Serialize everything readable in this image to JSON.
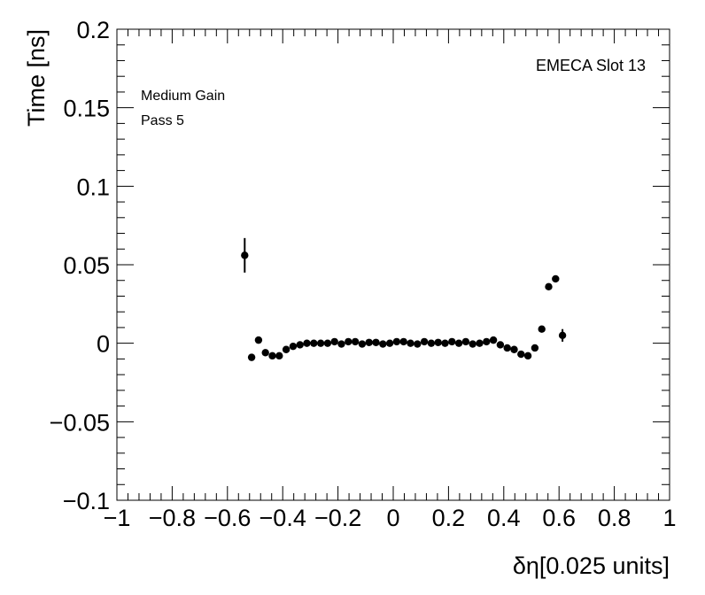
{
  "chart_data": {
    "type": "scatter",
    "xlabel": "δη[0.025 units]",
    "ylabel": "Time [ns]",
    "xlim": [
      -1,
      1
    ],
    "ylim": [
      -0.1,
      0.2
    ],
    "x_ticks": [
      -1,
      -0.8,
      -0.6,
      -0.4,
      -0.2,
      0,
      0.2,
      0.4,
      0.6,
      0.8,
      1
    ],
    "x_tick_labels": [
      "−1",
      "−0.8",
      "−0.6",
      "−0.4",
      "−0.2",
      "0",
      "0.2",
      "0.4",
      "0.6",
      "0.8",
      "1"
    ],
    "y_ticks": [
      -0.1,
      -0.05,
      0,
      0.05,
      0.1,
      0.15,
      0.2
    ],
    "y_tick_labels": [
      "−0.1",
      "−0.05",
      "0",
      "0.05",
      "0.1",
      "0.15",
      "0.2"
    ],
    "annotations": {
      "top_right": "EMECA Slot 13",
      "line1": "Medium Gain",
      "line2": "Pass 5"
    },
    "grid": false,
    "marker_color": "#000000",
    "points": [
      {
        "x": -0.5375,
        "y": 0.056,
        "err": 0.011
      },
      {
        "x": -0.5125,
        "y": -0.009,
        "err": 0
      },
      {
        "x": -0.4875,
        "y": 0.002,
        "err": 0
      },
      {
        "x": -0.4625,
        "y": -0.006,
        "err": 0
      },
      {
        "x": -0.4375,
        "y": -0.008,
        "err": 0
      },
      {
        "x": -0.4125,
        "y": -0.008,
        "err": 0
      },
      {
        "x": -0.3875,
        "y": -0.004,
        "err": 0
      },
      {
        "x": -0.3625,
        "y": -0.002,
        "err": 0
      },
      {
        "x": -0.3375,
        "y": -0.001,
        "err": 0
      },
      {
        "x": -0.3125,
        "y": 0.0,
        "err": 0
      },
      {
        "x": -0.2875,
        "y": 0.0,
        "err": 0
      },
      {
        "x": -0.2625,
        "y": 0.0,
        "err": 0
      },
      {
        "x": -0.2375,
        "y": 0.0,
        "err": 0
      },
      {
        "x": -0.2125,
        "y": 0.001,
        "err": 0
      },
      {
        "x": -0.1875,
        "y": -0.0005,
        "err": 0
      },
      {
        "x": -0.1625,
        "y": 0.001,
        "err": 0
      },
      {
        "x": -0.1375,
        "y": 0.001,
        "err": 0
      },
      {
        "x": -0.1125,
        "y": -0.0005,
        "err": 0
      },
      {
        "x": -0.0875,
        "y": 0.0005,
        "err": 0
      },
      {
        "x": -0.0625,
        "y": 0.0005,
        "err": 0
      },
      {
        "x": -0.0375,
        "y": -0.0005,
        "err": 0
      },
      {
        "x": -0.0125,
        "y": 0.0,
        "err": 0
      },
      {
        "x": 0.0125,
        "y": 0.001,
        "err": 0
      },
      {
        "x": 0.0375,
        "y": 0.001,
        "err": 0
      },
      {
        "x": 0.0625,
        "y": 0.0,
        "err": 0
      },
      {
        "x": 0.0875,
        "y": -0.0005,
        "err": 0
      },
      {
        "x": 0.1125,
        "y": 0.001,
        "err": 0
      },
      {
        "x": 0.1375,
        "y": 0.0,
        "err": 0
      },
      {
        "x": 0.1625,
        "y": 0.0005,
        "err": 0
      },
      {
        "x": 0.1875,
        "y": 0.0,
        "err": 0
      },
      {
        "x": 0.2125,
        "y": 0.001,
        "err": 0
      },
      {
        "x": 0.2375,
        "y": 0.0,
        "err": 0
      },
      {
        "x": 0.2625,
        "y": 0.001,
        "err": 0
      },
      {
        "x": 0.2875,
        "y": -0.0005,
        "err": 0
      },
      {
        "x": 0.3125,
        "y": 0.0,
        "err": 0
      },
      {
        "x": 0.3375,
        "y": 0.001,
        "err": 0
      },
      {
        "x": 0.3625,
        "y": 0.002,
        "err": 0
      },
      {
        "x": 0.3875,
        "y": -0.001,
        "err": 0
      },
      {
        "x": 0.4125,
        "y": -0.003,
        "err": 0
      },
      {
        "x": 0.4375,
        "y": -0.004,
        "err": 0
      },
      {
        "x": 0.4625,
        "y": -0.007,
        "err": 0
      },
      {
        "x": 0.4875,
        "y": -0.008,
        "err": 0
      },
      {
        "x": 0.5125,
        "y": -0.003,
        "err": 0
      },
      {
        "x": 0.5375,
        "y": 0.009,
        "err": 0
      },
      {
        "x": 0.5625,
        "y": 0.036,
        "err": 0
      },
      {
        "x": 0.5875,
        "y": 0.041,
        "err": 0
      },
      {
        "x": 0.6125,
        "y": 0.005,
        "err": 0.004
      }
    ]
  }
}
